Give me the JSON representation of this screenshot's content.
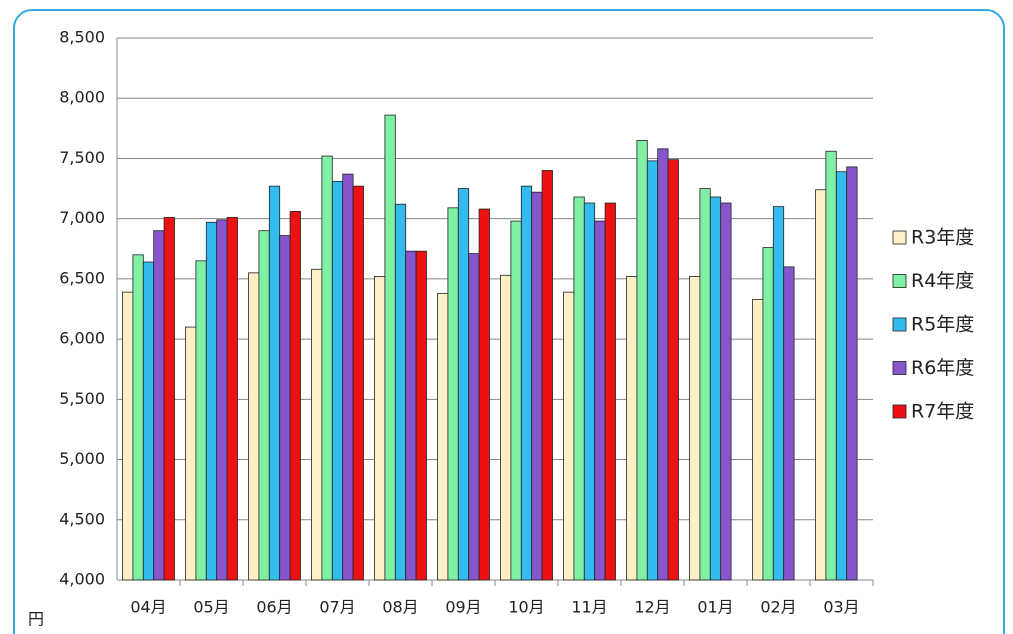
{
  "chart_data": {
    "type": "bar",
    "y_unit": "円",
    "categories": [
      "04月",
      "05月",
      "06月",
      "07月",
      "08月",
      "09月",
      "10月",
      "11月",
      "12月",
      "01月",
      "02月",
      "03月"
    ],
    "series": [
      {
        "name": "R3年度",
        "color": "#fdf0c6",
        "values": [
          6390,
          6100,
          6550,
          6580,
          6520,
          6380,
          6530,
          6390,
          6520,
          6520,
          6330,
          7240
        ]
      },
      {
        "name": "R4年度",
        "color": "#7ff0a4",
        "values": [
          6700,
          6650,
          6900,
          7520,
          7860,
          7090,
          6980,
          7180,
          7650,
          7250,
          6760,
          7560
        ]
      },
      {
        "name": "R5年度",
        "color": "#33bbee",
        "values": [
          6640,
          6970,
          7270,
          7310,
          7120,
          7250,
          7270,
          7130,
          7480,
          7180,
          7100,
          7390
        ]
      },
      {
        "name": "R6年度",
        "color": "#8855cc",
        "values": [
          6900,
          6990,
          6860,
          7370,
          6730,
          6710,
          7220,
          6980,
          7580,
          7130,
          6600,
          7430
        ]
      },
      {
        "name": "R7年度",
        "color": "#ee1111",
        "values": [
          7010,
          7010,
          7060,
          7270,
          6730,
          7080,
          7400,
          7130,
          7490,
          null,
          null,
          null
        ]
      }
    ],
    "ylim": [
      4000,
      8500
    ],
    "yticks": [
      {
        "value": 4000,
        "label": "4,000"
      },
      {
        "value": 4500,
        "label": "4,500"
      },
      {
        "value": 5000,
        "label": "5,000"
      },
      {
        "value": 5500,
        "label": "5,500"
      },
      {
        "value": 6000,
        "label": "6,000"
      },
      {
        "value": 6500,
        "label": "6,500"
      },
      {
        "value": 7000,
        "label": "7,000"
      },
      {
        "value": 7500,
        "label": "7,500"
      },
      {
        "value": 8000,
        "label": "8,000"
      },
      {
        "value": 8500,
        "label": "8,500"
      }
    ],
    "grid": true,
    "legend": "right"
  }
}
